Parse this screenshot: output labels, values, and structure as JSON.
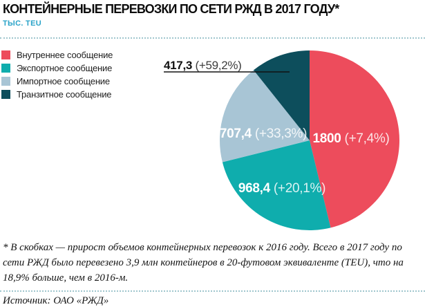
{
  "header": {
    "title": "КОНТЕЙНЕРНЫЕ ПЕРЕВОЗКИ ПО СЕТИ РЖД В 2017 ГОДУ*",
    "units": "ТЫС. TEU"
  },
  "chart_data": {
    "type": "pie",
    "title": "Контейнерные перевозки по сети РЖД в 2017 году",
    "units": "тыс. TEU",
    "start_angle_deg": 0,
    "direction": "clockwise",
    "total": 3893.1,
    "legend_position": "left",
    "slices": [
      {
        "label": "Внутреннее сообщение",
        "value": 1800,
        "value_text": "1800",
        "growth_pct": 7.4,
        "growth_text": "(+7,4%)",
        "color": "#ED4C5C",
        "label_placement": "inside"
      },
      {
        "label": "Экспортное сообщение",
        "value": 968.4,
        "value_text": "968,4",
        "growth_pct": 20.1,
        "growth_text": "(+20,1%)",
        "color": "#0FADAD",
        "label_placement": "inside"
      },
      {
        "label": "Импортное сообщение",
        "value": 707.4,
        "value_text": "707,4",
        "growth_pct": 33.3,
        "growth_text": "(+33,3%)",
        "color": "#A8C5D5",
        "label_placement": "inside"
      },
      {
        "label": "Транзитное сообщение",
        "value": 417.3,
        "value_text": "417,3",
        "growth_pct": 59.2,
        "growth_text": "(+59,2%)",
        "color": "#0D4E5C",
        "label_placement": "outside-callout"
      }
    ]
  },
  "footnote": "* В скобках — прирост объемов контейнерных перевозок к 2016 году. Всего в 2017 году по сети РЖД было перевезено 3,9 млн контейнеров в 20-футовом эквиваленте (TEU), что на 18,9% больше, чем в 2016-м.",
  "source": "Источник: ОАО «РЖД»",
  "colors": {
    "title": "#0d0d0d",
    "units": "#2aa3c8",
    "divider": "#9fc6cd",
    "callout_line": "#111111"
  }
}
